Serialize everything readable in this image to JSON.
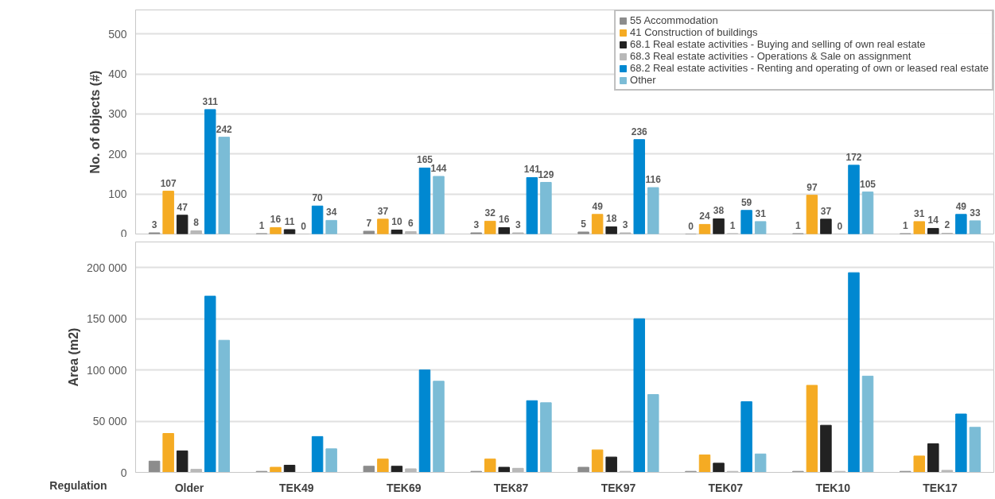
{
  "chart_data": [
    {
      "type": "bar",
      "ylabel": "No. of objects (#)",
      "categories": [
        "Older",
        "TEK49",
        "TEK69",
        "TEK87",
        "TEK97",
        "TEK07",
        "TEK10",
        "TEK17"
      ],
      "ylim": [
        0,
        560
      ],
      "yticks": [
        0,
        100,
        200,
        300,
        400,
        500
      ],
      "grid": "y",
      "legend": "top right",
      "data_labels": true,
      "tick_labels": "y",
      "series": [
        {
          "name": "55 Accommodation",
          "color": "#8c8c8c",
          "values": [
            3,
            1,
            7,
            3,
            5,
            0,
            1,
            1
          ]
        },
        {
          "name": "41 Construction of buildings",
          "color": "#f5ab23",
          "values": [
            107,
            16,
            37,
            32,
            49,
            24,
            97,
            31
          ]
        },
        {
          "name": "68.1 Real estate activities - Buying and selling of own real estate",
          "color": "#222222",
          "values": [
            47,
            11,
            10,
            16,
            18,
            38,
            37,
            14
          ]
        },
        {
          "name": "68.3 Real estate activities - Operations & Sale on assignment",
          "color": "#b8b8b8",
          "values": [
            8,
            0,
            6,
            3,
            3,
            1,
            0,
            2
          ]
        },
        {
          "name": "68.2 Real estate activities - Renting and operating of own or leased real estate",
          "color": "#0088d1",
          "values": [
            311,
            70,
            165,
            141,
            236,
            59,
            172,
            49
          ]
        },
        {
          "name": "Other",
          "color": "#7bbcd6",
          "values": [
            242,
            34,
            144,
            129,
            116,
            31,
            105,
            33
          ]
        }
      ]
    },
    {
      "type": "bar",
      "ylabel": "Area (m2)",
      "xlabel": "Regulation",
      "categories": [
        "Older",
        "TEK49",
        "TEK69",
        "TEK87",
        "TEK97",
        "TEK07",
        "TEK10",
        "TEK17"
      ],
      "ylim": [
        0,
        225000
      ],
      "yticks": [
        0,
        {
          "value": 50000,
          "label": "50 000"
        },
        {
          "value": 100000,
          "label": "100 000"
        },
        {
          "value": 150000,
          "label": "150 000"
        },
        {
          "value": 200000,
          "label": "200 000"
        }
      ],
      "grid": "y",
      "series": [
        {
          "color": "#8c8c8c",
          "values": [
            11000,
            1000,
            6000,
            1000,
            5000,
            1000,
            1000,
            1000
          ]
        },
        {
          "color": "#f5ab23",
          "values": [
            38000,
            5000,
            13000,
            13000,
            22000,
            17000,
            85000,
            16000
          ]
        },
        {
          "color": "#222222",
          "values": [
            21000,
            7000,
            6000,
            5000,
            15000,
            9000,
            46000,
            28000
          ]
        },
        {
          "color": "#b8b8b8",
          "values": [
            3000,
            0,
            3500,
            4000,
            1000,
            1000,
            1000,
            2000
          ]
        },
        {
          "color": "#0088d1",
          "values": [
            172000,
            35000,
            100000,
            70000,
            150000,
            69000,
            195000,
            57000
          ]
        },
        {
          "color": "#7bbcd6",
          "values": [
            129000,
            23000,
            89000,
            68000,
            76000,
            18000,
            94000,
            44000
          ]
        }
      ]
    }
  ]
}
